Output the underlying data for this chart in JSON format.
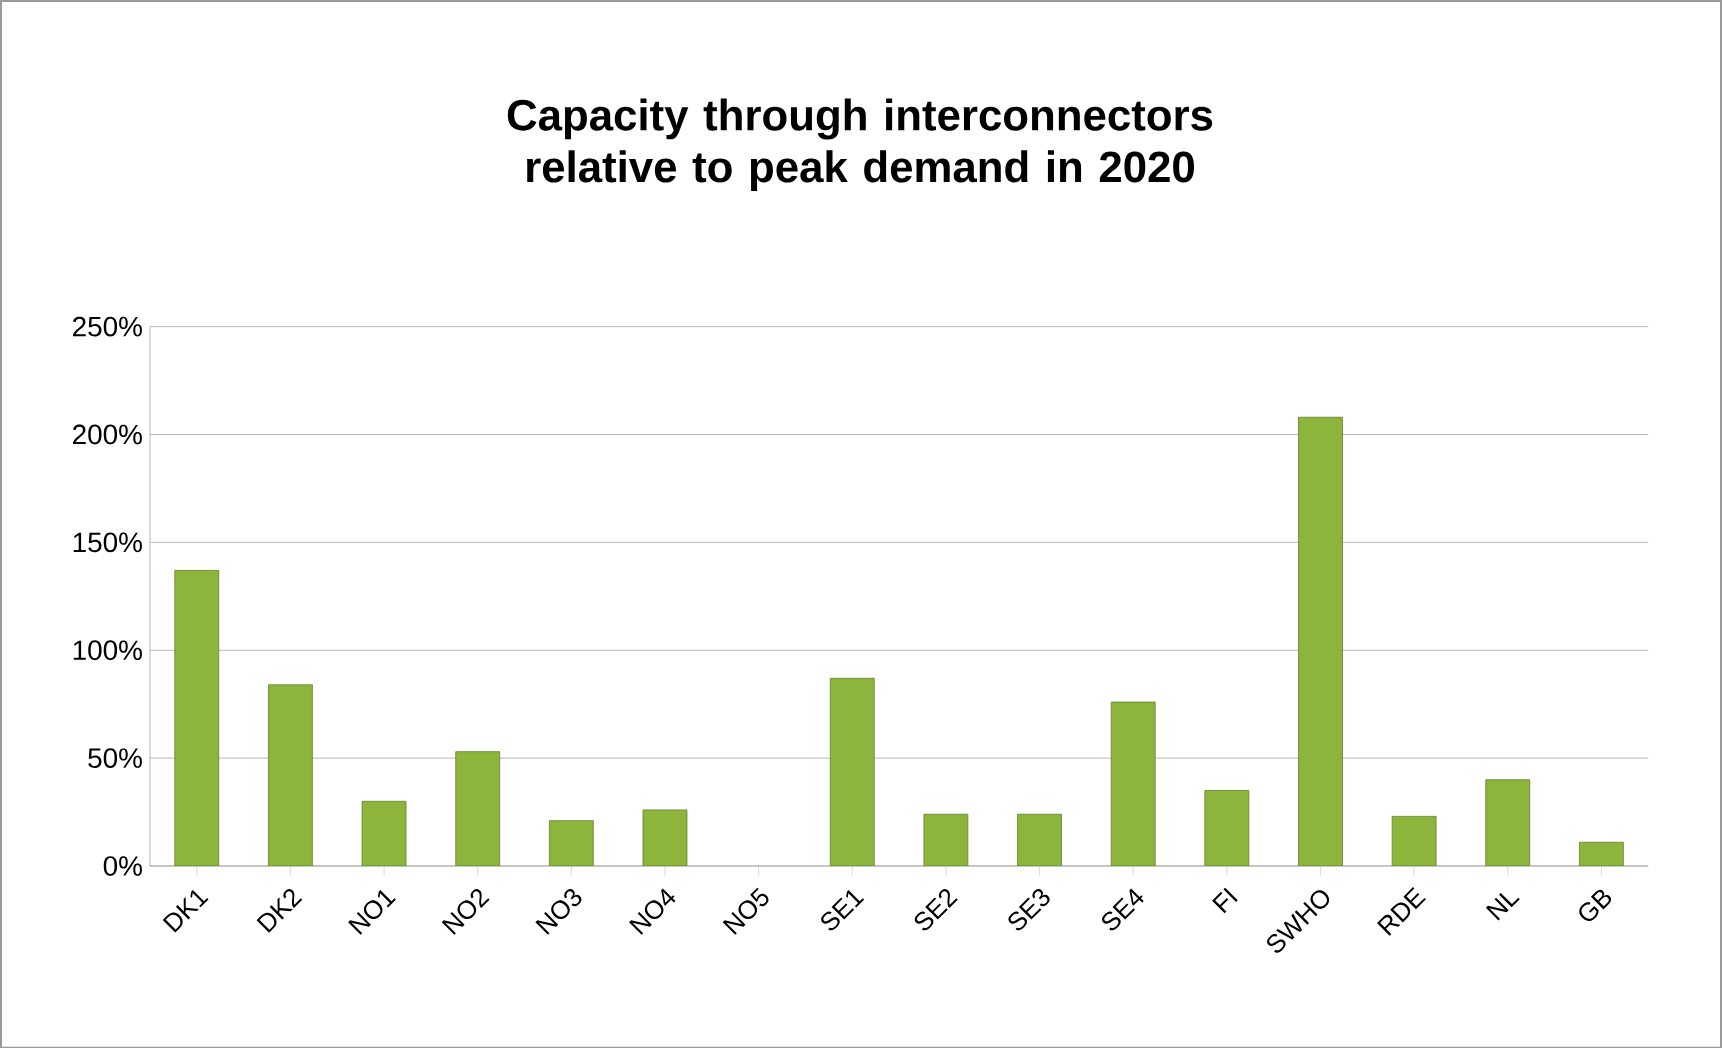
{
  "chart_data": {
    "type": "bar",
    "title": "Capacity through interconnectors relative to peak demand in 2020",
    "categories": [
      "DK1",
      "DK2",
      "NO1",
      "NO2",
      "NO3",
      "NO4",
      "NO5",
      "SE1",
      "SE2",
      "SE3",
      "SE4",
      "FI",
      "SWHO",
      "RDE",
      "NL",
      "GB"
    ],
    "values": [
      137,
      84,
      30,
      53,
      21,
      26,
      null,
      87,
      24,
      24,
      76,
      35,
      208,
      23,
      40,
      11
    ],
    "color": "#8db53c",
    "ylim": [
      0,
      250
    ],
    "yticks": [
      {
        "value": 0,
        "label": "0%"
      },
      {
        "value": 50,
        "label": "50%"
      },
      {
        "value": 100,
        "label": "100%"
      },
      {
        "value": 150,
        "label": "150%"
      },
      {
        "value": 200,
        "label": "200%"
      },
      {
        "value": 250,
        "label": "250%"
      }
    ],
    "grid": "y"
  }
}
